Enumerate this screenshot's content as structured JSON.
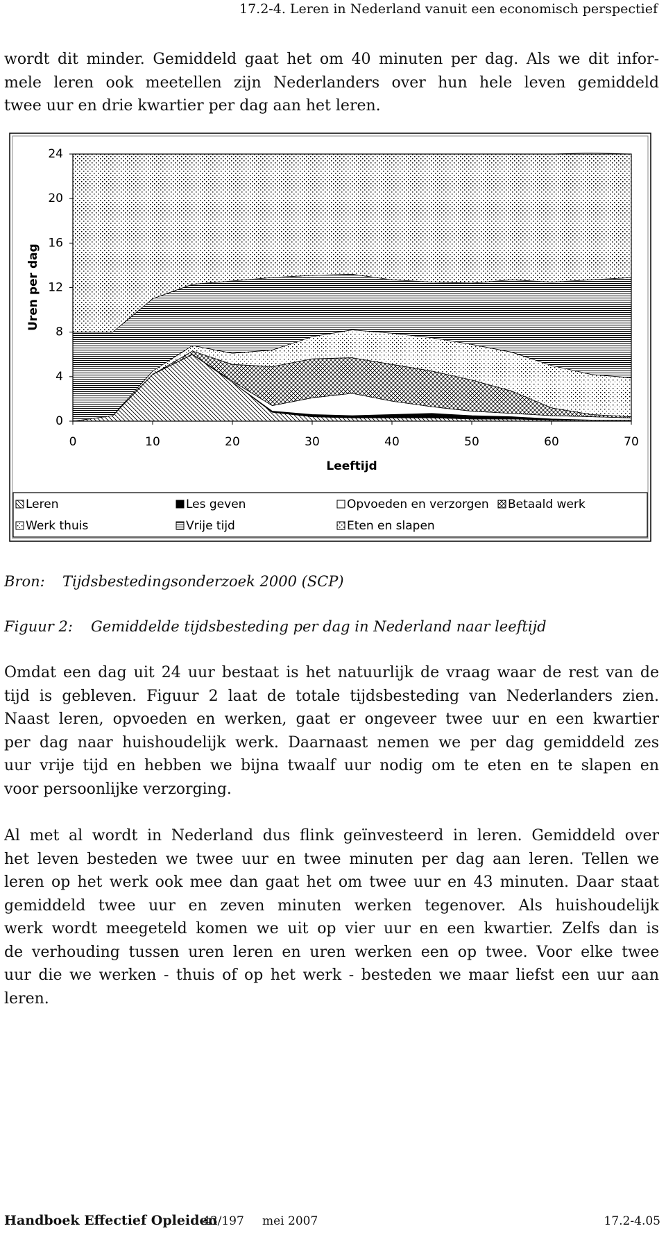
{
  "header": "17.2-4. Leren in Nederland vanuit een economisch perspectief",
  "intro": [
    "wordt dit minder. Gemiddeld gaat het om 40 minuten per dag. Als we dit infor-",
    "mele leren ook meetellen zijn Nederlanders over hun hele leven gemiddeld",
    "twee uur en drie kwartier per dag aan het leren."
  ],
  "chart_data": {
    "type": "area",
    "stacked": true,
    "x": [
      0,
      5,
      10,
      15,
      20,
      25,
      30,
      35,
      40,
      45,
      50,
      55,
      60,
      65,
      70
    ],
    "series": [
      {
        "name": "Leren",
        "color": "#000000",
        "values": [
          0,
          0.5,
          4.2,
          6,
          3.5,
          0.8,
          0.4,
          0.3,
          0.3,
          0.3,
          0.2,
          0.2,
          0.1,
          0.1,
          0.1
        ]
      },
      {
        "name": "Les geven",
        "color": "#000000",
        "values": [
          0,
          0,
          0,
          0,
          0,
          0.1,
          0.2,
          0.2,
          0.3,
          0.4,
          0.3,
          0.2,
          0.1,
          0,
          0
        ]
      },
      {
        "name": "Opvoeden en verzorgen",
        "color": "#000000",
        "values": [
          0,
          0,
          0,
          0,
          0.1,
          0.5,
          1.5,
          2,
          1.2,
          0.6,
          0.4,
          0.3,
          0.3,
          0.3,
          0.2
        ]
      },
      {
        "name": "Betaald werk",
        "color": "#000000",
        "values": [
          0,
          0,
          0,
          0.3,
          1.5,
          3.5,
          3.5,
          3.2,
          3.3,
          3.2,
          2.8,
          2,
          0.7,
          0.2,
          0.1
        ]
      },
      {
        "name": "Werk thuis",
        "color": "#000000",
        "values": [
          0,
          0,
          0.3,
          0.5,
          1,
          1.5,
          2,
          2.5,
          2.8,
          3,
          3.2,
          3.5,
          3.8,
          3.6,
          3.5
        ]
      },
      {
        "name": "Vrije tijd",
        "color": "#000000",
        "values": [
          8,
          7.5,
          6.5,
          5.5,
          6.5,
          6.5,
          5.5,
          5,
          4.8,
          5,
          5.5,
          6.5,
          7.5,
          8.5,
          9
        ]
      },
      {
        "name": "Eten en slapen",
        "color": "#000000",
        "values": [
          16,
          16,
          13,
          11.7,
          11.4,
          11.1,
          10.9,
          10.8,
          11.3,
          11.5,
          11.6,
          11.3,
          11.5,
          11.4,
          11.1
        ]
      }
    ],
    "xlim": [
      0,
      70
    ],
    "xticks": [
      0,
      10,
      20,
      30,
      40,
      50,
      60,
      70
    ],
    "ylim": [
      0,
      24
    ],
    "yticks": [
      0,
      4,
      8,
      12,
      16,
      20,
      24
    ],
    "xlabel": "Leeftijd",
    "ylabel": "Uren per dag",
    "legend": "bottom"
  },
  "source": {
    "label": "Bron:",
    "text": "Tijdsbestedingsonderzoek 2000 (SCP)"
  },
  "figure": {
    "label": "Figuur 2:",
    "text": "Gemiddelde tijdsbesteding per dag in Nederland naar leeftijd"
  },
  "body": [
    [
      "Omdat een dag uit 24 uur bestaat is het natuurlijk de vraag waar de rest van de",
      "tijd is gebleven. Figuur 2 laat de totale tijdsbesteding van Nederlanders zien.",
      "Naast leren, opvoeden en werken, gaat er ongeveer twee uur en een kwartier",
      "per dag naar huishoudelijk werk. Daarnaast nemen we per dag gemiddeld zes",
      "uur vrije tijd en hebben we bijna twaalf uur nodig om te eten en te slapen en",
      "voor persoonlijke verzorging."
    ],
    [
      "Al met al wordt in Nederland dus flink geïnvesteerd in leren. Gemiddeld over",
      "het leven besteden we twee uur en twee minuten per dag aan leren. Tellen we",
      "leren op het werk ook mee dan gaat het om twee uur en 43 minuten. Daar staat",
      "gemiddeld twee uur en zeven minuten werken tegenover. Als huishoudelijk",
      "werk wordt meegeteld komen we uit op vier uur en een kwartier. Zelfs dan is",
      "de verhouding tussen uren leren en uren werken een op twee. Voor elke twee",
      "uur die we werken - thuis of op het werk - besteden we maar liefst een uur aan",
      "leren."
    ]
  ],
  "footer": {
    "title": "Handboek Effectief Opleiden",
    "pages": "43/197",
    "date": "mei 2007",
    "code": "17.2-4.05"
  }
}
